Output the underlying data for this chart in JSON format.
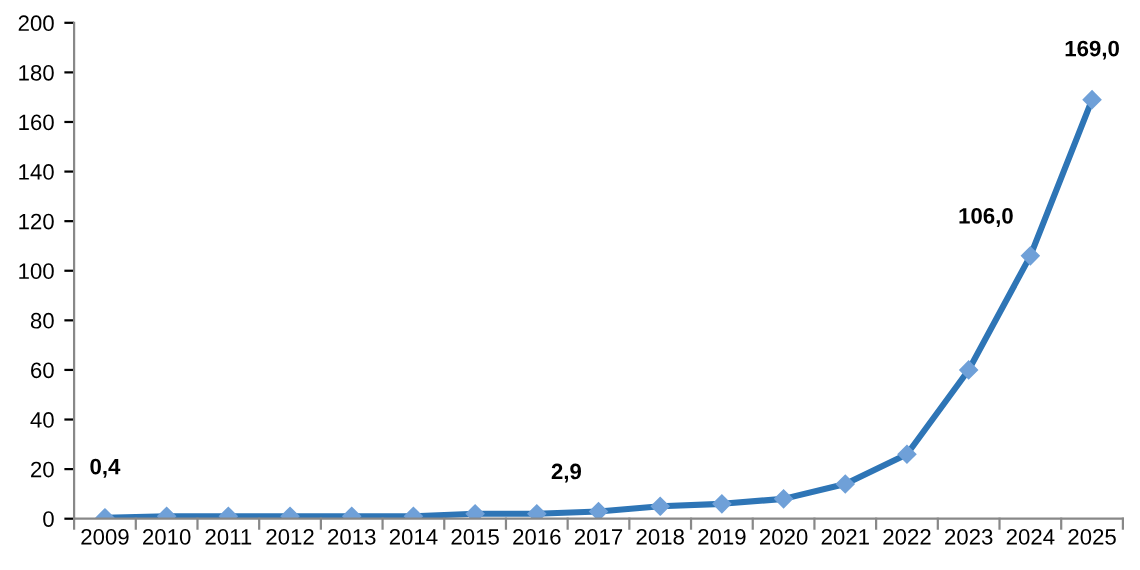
{
  "chart_data": {
    "type": "line",
    "categories": [
      "2009",
      "2010",
      "2011",
      "2012",
      "2013",
      "2014",
      "2015",
      "2016",
      "2017",
      "2018",
      "2019",
      "2020",
      "2021",
      "2022",
      "2023",
      "2024",
      "2025"
    ],
    "series": [
      {
        "color": "#2e75b6",
        "values": [
          0.4,
          1,
          1,
          1,
          1,
          1,
          2,
          2,
          2.9,
          5,
          6,
          8,
          14,
          26,
          60,
          106,
          169
        ],
        "value_labels": [
          "0,4",
          null,
          null,
          null,
          null,
          null,
          null,
          null,
          "2,9",
          null,
          null,
          null,
          null,
          null,
          null,
          "106,0",
          "169,0"
        ]
      }
    ],
    "ylim": [
      0,
      200
    ],
    "yticks": [
      0,
      20,
      40,
      60,
      80,
      100,
      120,
      140,
      160,
      180,
      200
    ],
    "grid": false,
    "marker": "diamond",
    "line_style": "solid"
  }
}
